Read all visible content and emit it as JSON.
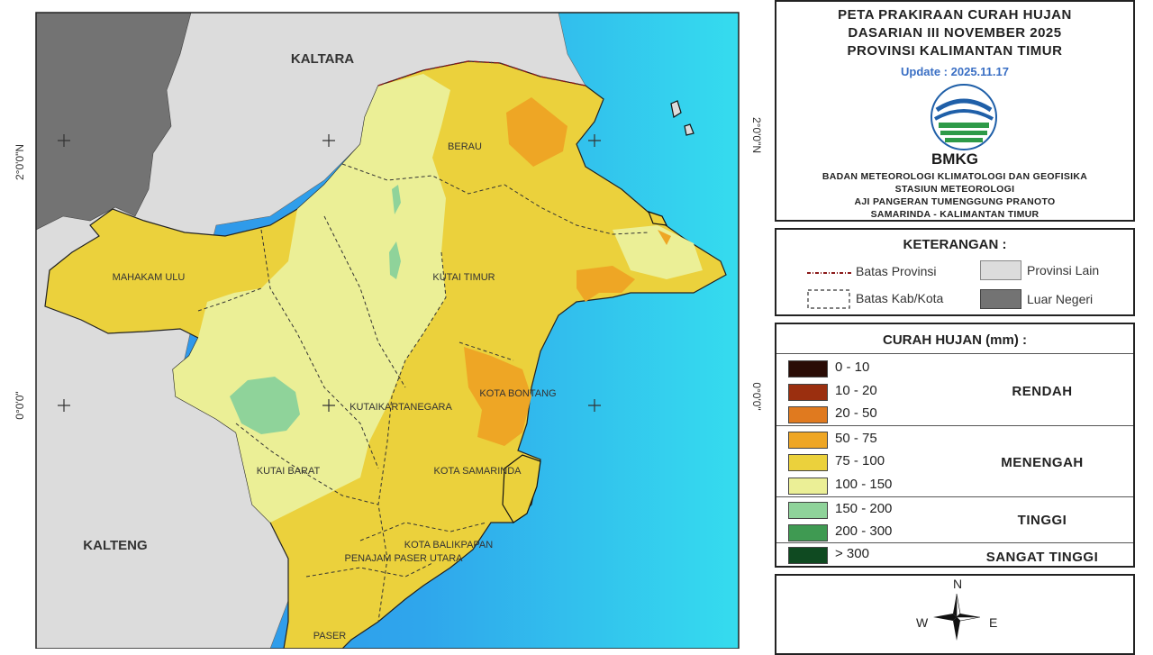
{
  "map": {
    "labels": {
      "kaltara": "KALTARA",
      "kalteng": "KALTENG",
      "berau": "BERAU",
      "mahakam_ulu": "MAHAKAM ULU",
      "kutai_timur": "KUTAI TIMUR",
      "kota_bontang": "KOTA BONTANG",
      "kutai_kartanegara": "KUTAIKARTANEGARA",
      "kutai_barat": "KUTAI BARAT",
      "kota_samarinda": "KOTA SAMARINDA",
      "kota_balikpapan": "KOTA BALIKPAPAN",
      "penajam_paser_utara": "PENAJAM PASER UTARA",
      "paser": "PASER"
    },
    "graticule": {
      "lat_2n": "2°0'0\"N",
      "lat_0": "0°0'0\""
    },
    "colors": {
      "other_province": "#dcdcdc",
      "foreign": "#737373",
      "sea_near": "#2f8ee8",
      "sea_far": "#35dcee"
    }
  },
  "title": {
    "line1": "PETA PRAKIRAAN CURAH HUJAN",
    "line2": "DASARIAN III NOVEMBER 2025",
    "line3": "PROVINSI KALIMANTAN TIMUR",
    "update": "Update : 2025.11.17",
    "logo_text": "BMKG",
    "org1": "BADAN METEOROLOGI KLIMATOLOGI DAN GEOFISIKA",
    "org2": "STASIUN METEOROLOGI",
    "org3": "AJI PANGERAN TUMENGGUNG PRANOTO",
    "org4": "SAMARINDA - KALIMANTAN TIMUR"
  },
  "keterangan": {
    "title": "KETERANGAN :",
    "batas_provinsi": "Batas Provinsi",
    "batas_kab": "Batas Kab/Kota",
    "provinsi_lain": "Provinsi Lain",
    "luar_negeri": "Luar Negeri"
  },
  "curah_hujan": {
    "title": "CURAH HUJAN (mm) :",
    "classes": [
      {
        "label": "0 - 10",
        "color": "#2a0c06"
      },
      {
        "label": "10 - 20",
        "color": "#9b2f0f"
      },
      {
        "label": "20 - 50",
        "color": "#e07a1f"
      },
      {
        "label": "50 - 75",
        "color": "#eea625"
      },
      {
        "label": "75 - 100",
        "color": "#ebd13c"
      },
      {
        "label": "100 - 150",
        "color": "#ebef96"
      },
      {
        "label": "150 - 200",
        "color": "#8fd39a"
      },
      {
        "label": "200 - 300",
        "color": "#3f9a52"
      },
      {
        "label": "> 300",
        "color": "#0f4a21"
      }
    ],
    "categories": {
      "rendah": "RENDAH",
      "menengah": "MENENGAH",
      "tinggi": "TINGGI",
      "sangat_tinggi": "SANGAT TINGGI"
    }
  },
  "compass": {
    "n": "N",
    "w": "W",
    "e": "E"
  }
}
